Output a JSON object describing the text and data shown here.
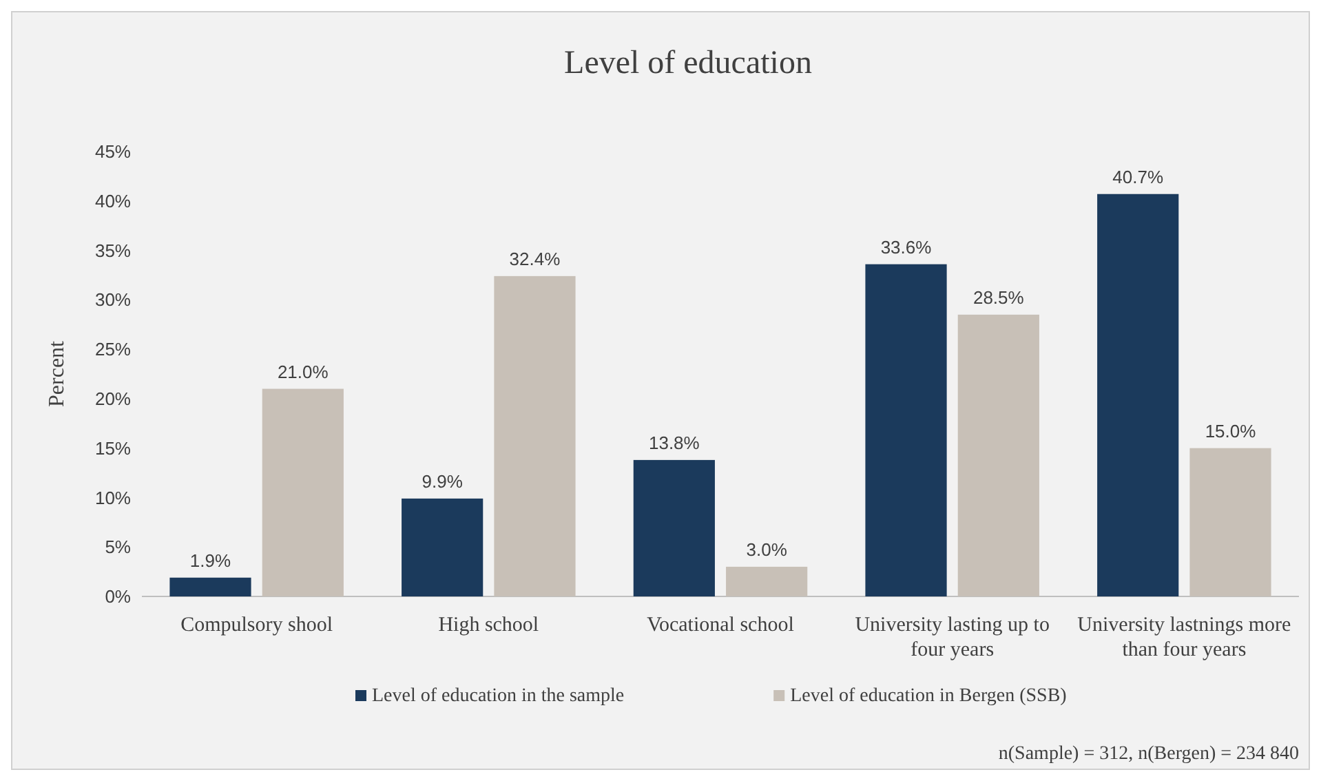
{
  "chart_data": {
    "type": "bar",
    "title": "Level of education",
    "ylabel": "Percent",
    "categories": [
      "Compulsory shool",
      "High school",
      "Vocational school",
      "University lasting up to four years",
      "University lastnings more than four years"
    ],
    "series": [
      {
        "name": "Level of education in the sample",
        "color": "#1b3a5c",
        "values": [
          1.9,
          9.9,
          13.8,
          33.6,
          40.7
        ],
        "value_labels": [
          "1.9%",
          "9.9%",
          "13.8%",
          "33.6%",
          "40.7%"
        ]
      },
      {
        "name": "Level of education in Bergen (SSB)",
        "color": "#c8c0b7",
        "values": [
          21.0,
          32.4,
          3.0,
          28.5,
          15.0
        ],
        "value_labels": [
          "21.0%",
          "32.4%",
          "3.0%",
          "28.5%",
          "15.0%"
        ]
      }
    ],
    "ylim": [
      0,
      45
    ],
    "yticks": [
      {
        "value": 0,
        "label": "0%"
      },
      {
        "value": 5,
        "label": "5%"
      },
      {
        "value": 10,
        "label": "10%"
      },
      {
        "value": 15,
        "label": "15%"
      },
      {
        "value": 20,
        "label": "20%"
      },
      {
        "value": 25,
        "label": "25%"
      },
      {
        "value": 30,
        "label": "30%"
      },
      {
        "value": 35,
        "label": "35%"
      },
      {
        "value": 40,
        "label": "40%"
      },
      {
        "value": 45,
        "label": "45%"
      }
    ],
    "grid": false,
    "legend": "bottom",
    "annotations": [
      "n(Sample) = 312, n(Bergen) = 234 840"
    ]
  }
}
